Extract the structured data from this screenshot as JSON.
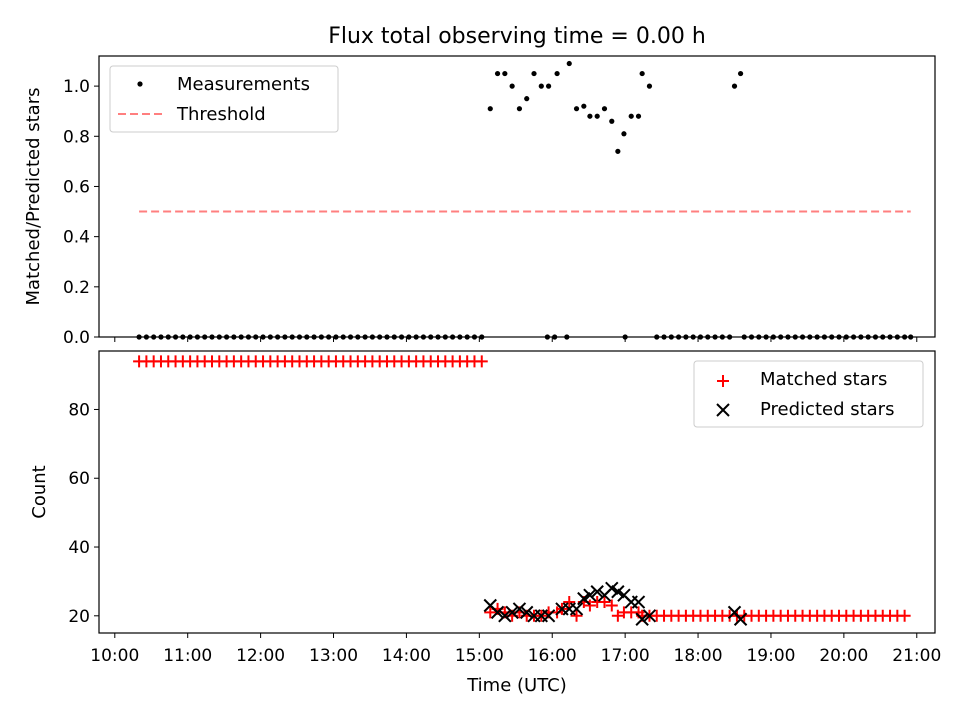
{
  "chart_data": [
    {
      "type": "scatter",
      "title": "Flux total observing time = 0.00 h",
      "xlabel": "",
      "ylabel": "Matched/Predicted stars",
      "xlim": [
        "09:47",
        "21:15"
      ],
      "ylim": [
        0,
        1.12
      ],
      "yticks": [
        0.0,
        0.2,
        0.4,
        0.6,
        0.8,
        1.0
      ],
      "ytick_labels": [
        "0.0",
        "0.2",
        "0.4",
        "0.6",
        "0.8",
        "1.0"
      ],
      "xtick_labels_shown": false,
      "legend_position": "top-left",
      "series": [
        {
          "name": "Measurements",
          "kind": "points",
          "color": "#000000",
          "points": [
            {
              "x": "10:20",
              "y": 0
            },
            {
              "x": "10:26",
              "y": 0
            },
            {
              "x": "10:32",
              "y": 0
            },
            {
              "x": "10:38",
              "y": 0
            },
            {
              "x": "10:44",
              "y": 0
            },
            {
              "x": "10:50",
              "y": 0
            },
            {
              "x": "10:56",
              "y": 0
            },
            {
              "x": "11:02",
              "y": 0
            },
            {
              "x": "11:08",
              "y": 0
            },
            {
              "x": "11:14",
              "y": 0
            },
            {
              "x": "11:20",
              "y": 0
            },
            {
              "x": "11:26",
              "y": 0
            },
            {
              "x": "11:32",
              "y": 0
            },
            {
              "x": "11:38",
              "y": 0
            },
            {
              "x": "11:44",
              "y": 0
            },
            {
              "x": "11:50",
              "y": 0
            },
            {
              "x": "11:56",
              "y": 0
            },
            {
              "x": "12:02",
              "y": 0
            },
            {
              "x": "12:08",
              "y": 0
            },
            {
              "x": "12:14",
              "y": 0
            },
            {
              "x": "12:20",
              "y": 0
            },
            {
              "x": "12:26",
              "y": 0
            },
            {
              "x": "12:32",
              "y": 0
            },
            {
              "x": "12:38",
              "y": 0
            },
            {
              "x": "12:44",
              "y": 0
            },
            {
              "x": "12:50",
              "y": 0
            },
            {
              "x": "12:56",
              "y": 0
            },
            {
              "x": "13:02",
              "y": 0
            },
            {
              "x": "13:08",
              "y": 0
            },
            {
              "x": "13:14",
              "y": 0
            },
            {
              "x": "13:20",
              "y": 0
            },
            {
              "x": "13:26",
              "y": 0
            },
            {
              "x": "13:32",
              "y": 0
            },
            {
              "x": "13:38",
              "y": 0
            },
            {
              "x": "13:44",
              "y": 0
            },
            {
              "x": "13:50",
              "y": 0
            },
            {
              "x": "13:56",
              "y": 0
            },
            {
              "x": "14:02",
              "y": 0
            },
            {
              "x": "14:08",
              "y": 0
            },
            {
              "x": "14:14",
              "y": 0
            },
            {
              "x": "14:20",
              "y": 0
            },
            {
              "x": "14:26",
              "y": 0
            },
            {
              "x": "14:32",
              "y": 0
            },
            {
              "x": "14:38",
              "y": 0
            },
            {
              "x": "14:44",
              "y": 0
            },
            {
              "x": "14:50",
              "y": 0
            },
            {
              "x": "14:56",
              "y": 0
            },
            {
              "x": "15:02",
              "y": 0
            },
            {
              "x": "15:09",
              "y": 0.91
            },
            {
              "x": "15:15",
              "y": 1.05
            },
            {
              "x": "15:21",
              "y": 1.05
            },
            {
              "x": "15:27",
              "y": 1.0
            },
            {
              "x": "15:33",
              "y": 0.91
            },
            {
              "x": "15:39",
              "y": 0.95
            },
            {
              "x": "15:45",
              "y": 1.05
            },
            {
              "x": "15:51",
              "y": 1.0
            },
            {
              "x": "15:57",
              "y": 1.0
            },
            {
              "x": "15:56",
              "y": 0
            },
            {
              "x": "16:02",
              "y": 0
            },
            {
              "x": "16:12",
              "y": 0
            },
            {
              "x": "16:04",
              "y": 1.05
            },
            {
              "x": "16:14",
              "y": 1.09
            },
            {
              "x": "16:20",
              "y": 0.91
            },
            {
              "x": "16:26",
              "y": 0.92
            },
            {
              "x": "16:31",
              "y": 0.88
            },
            {
              "x": "16:37",
              "y": 0.88
            },
            {
              "x": "16:43",
              "y": 0.91
            },
            {
              "x": "16:49",
              "y": 0.86
            },
            {
              "x": "16:54",
              "y": 0.74
            },
            {
              "x": "16:59",
              "y": 0.81
            },
            {
              "x": "17:00",
              "y": 0
            },
            {
              "x": "17:05",
              "y": 0.88
            },
            {
              "x": "17:11",
              "y": 0.88
            },
            {
              "x": "17:14",
              "y": 1.05
            },
            {
              "x": "17:20",
              "y": 1.0
            },
            {
              "x": "17:26",
              "y": 0
            },
            {
              "x": "17:32",
              "y": 0
            },
            {
              "x": "17:38",
              "y": 0
            },
            {
              "x": "17:44",
              "y": 0
            },
            {
              "x": "17:50",
              "y": 0
            },
            {
              "x": "17:56",
              "y": 0
            },
            {
              "x": "18:02",
              "y": 0
            },
            {
              "x": "18:08",
              "y": 0
            },
            {
              "x": "18:14",
              "y": 0
            },
            {
              "x": "18:20",
              "y": 0
            },
            {
              "x": "18:26",
              "y": 0
            },
            {
              "x": "18:30",
              "y": 1.0
            },
            {
              "x": "18:35",
              "y": 1.05
            },
            {
              "x": "18:38",
              "y": 0
            },
            {
              "x": "18:44",
              "y": 0
            },
            {
              "x": "18:50",
              "y": 0
            },
            {
              "x": "18:56",
              "y": 0
            },
            {
              "x": "19:02",
              "y": 0
            },
            {
              "x": "19:08",
              "y": 0
            },
            {
              "x": "19:14",
              "y": 0
            },
            {
              "x": "19:20",
              "y": 0
            },
            {
              "x": "19:26",
              "y": 0
            },
            {
              "x": "19:32",
              "y": 0
            },
            {
              "x": "19:38",
              "y": 0
            },
            {
              "x": "19:44",
              "y": 0
            },
            {
              "x": "19:50",
              "y": 0
            },
            {
              "x": "19:56",
              "y": 0
            },
            {
              "x": "20:02",
              "y": 0
            },
            {
              "x": "20:08",
              "y": 0
            },
            {
              "x": "20:14",
              "y": 0
            },
            {
              "x": "20:20",
              "y": 0
            },
            {
              "x": "20:26",
              "y": 0
            },
            {
              "x": "20:32",
              "y": 0
            },
            {
              "x": "20:38",
              "y": 0
            },
            {
              "x": "20:44",
              "y": 0
            },
            {
              "x": "20:50",
              "y": 0
            },
            {
              "x": "20:55",
              "y": 0
            }
          ]
        },
        {
          "name": "Threshold",
          "kind": "dashed-line",
          "color": "#ff7f7f",
          "points": [
            {
              "x": "10:20",
              "y": 0.5
            },
            {
              "x": "20:55",
              "y": 0.5
            }
          ]
        }
      ]
    },
    {
      "type": "scatter",
      "title": "",
      "xlabel": "Time (UTC)",
      "ylabel": "Count",
      "xlim": [
        "09:47",
        "21:15"
      ],
      "ylim": [
        15,
        97
      ],
      "yticks": [
        20,
        40,
        60,
        80
      ],
      "ytick_labels": [
        "20",
        "40",
        "60",
        "80"
      ],
      "xticks": [
        "10:00",
        "11:00",
        "12:00",
        "13:00",
        "14:00",
        "15:00",
        "16:00",
        "17:00",
        "18:00",
        "19:00",
        "20:00",
        "21:00"
      ],
      "xtick_labels": [
        "10:00",
        "11:00",
        "12:00",
        "13:00",
        "14:00",
        "15:00",
        "16:00",
        "17:00",
        "18:00",
        "19:00",
        "20:00",
        "21:00"
      ],
      "legend_position": "top-right",
      "matched_regular": [
        {
          "start": "10:20",
          "end": "15:05",
          "step_min": 6,
          "y": 94
        },
        {
          "start": "17:20",
          "end": "20:55",
          "step_min": 6,
          "y": 20
        }
      ],
      "series": [
        {
          "name": "Matched stars",
          "marker": "plus",
          "color": "#ff0000",
          "points": [
            {
              "x": "15:09",
              "y": 21
            },
            {
              "x": "15:15",
              "y": 22
            },
            {
              "x": "15:21",
              "y": 21
            },
            {
              "x": "15:27",
              "y": 20
            },
            {
              "x": "15:33",
              "y": 21
            },
            {
              "x": "15:39",
              "y": 20
            },
            {
              "x": "15:45",
              "y": 20
            },
            {
              "x": "15:51",
              "y": 20
            },
            {
              "x": "15:57",
              "y": 21
            },
            {
              "x": "16:04",
              "y": 21
            },
            {
              "x": "16:08",
              "y": 22
            },
            {
              "x": "16:14",
              "y": 24
            },
            {
              "x": "16:20",
              "y": 20
            },
            {
              "x": "16:26",
              "y": 24
            },
            {
              "x": "16:31",
              "y": 23
            },
            {
              "x": "16:37",
              "y": 24
            },
            {
              "x": "16:43",
              "y": 24
            },
            {
              "x": "16:49",
              "y": 23
            },
            {
              "x": "16:54",
              "y": 20
            },
            {
              "x": "16:59",
              "y": 21
            },
            {
              "x": "17:05",
              "y": 21
            },
            {
              "x": "17:11",
              "y": 21
            },
            {
              "x": "17:14",
              "y": 20
            }
          ]
        },
        {
          "name": "Predicted stars",
          "marker": "x",
          "color": "#000000",
          "points": [
            {
              "x": "15:09",
              "y": 23
            },
            {
              "x": "15:15",
              "y": 21
            },
            {
              "x": "15:21",
              "y": 20
            },
            {
              "x": "15:27",
              "y": 21
            },
            {
              "x": "15:33",
              "y": 22
            },
            {
              "x": "15:39",
              "y": 21
            },
            {
              "x": "15:45",
              "y": 20
            },
            {
              "x": "15:51",
              "y": 20
            },
            {
              "x": "15:57",
              "y": 20
            },
            {
              "x": "16:08",
              "y": 22
            },
            {
              "x": "16:14",
              "y": 22
            },
            {
              "x": "16:20",
              "y": 22
            },
            {
              "x": "16:26",
              "y": 25
            },
            {
              "x": "16:31",
              "y": 26
            },
            {
              "x": "16:37",
              "y": 27
            },
            {
              "x": "16:43",
              "y": 26
            },
            {
              "x": "16:49",
              "y": 28
            },
            {
              "x": "16:54",
              "y": 27
            },
            {
              "x": "16:59",
              "y": 26
            },
            {
              "x": "17:05",
              "y": 24
            },
            {
              "x": "17:11",
              "y": 24
            },
            {
              "x": "17:14",
              "y": 19
            },
            {
              "x": "17:20",
              "y": 20
            },
            {
              "x": "18:30",
              "y": 21
            },
            {
              "x": "18:35",
              "y": 19
            }
          ]
        }
      ]
    }
  ]
}
